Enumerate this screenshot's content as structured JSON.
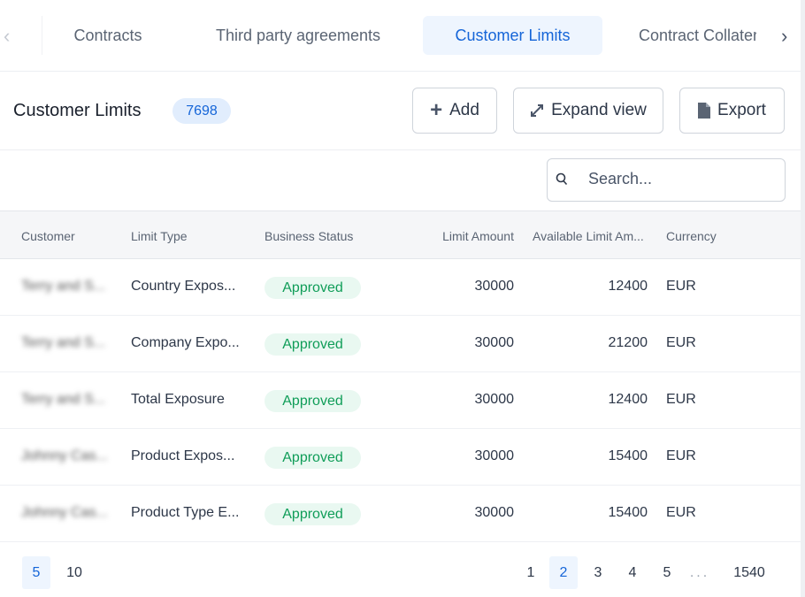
{
  "tabs": [
    {
      "label": "Contracts"
    },
    {
      "label": "Third party agreements"
    },
    {
      "label": "Customer Limits",
      "active": true
    },
    {
      "label": "Contract Collateral"
    }
  ],
  "header": {
    "title": "Customer Limits",
    "count": "7698",
    "add_label": "Add",
    "expand_label": "Expand view",
    "export_label": "Export"
  },
  "search": {
    "placeholder": "Search..."
  },
  "columns": [
    "Customer",
    "Limit Type",
    "Business Status",
    "Limit Amount",
    "Available Limit Am...",
    "Currency"
  ],
  "rows": [
    {
      "customer": "Terry and S...",
      "limit_type": "Country Expos...",
      "status": "Approved",
      "limit_amount": "30000",
      "available": "12400",
      "currency": "EUR"
    },
    {
      "customer": "Terry and S...",
      "limit_type": "Company Expo...",
      "status": "Approved",
      "limit_amount": "30000",
      "available": "21200",
      "currency": "EUR"
    },
    {
      "customer": "Terry and S...",
      "limit_type": "Total Exposure",
      "status": "Approved",
      "limit_amount": "30000",
      "available": "12400",
      "currency": "EUR"
    },
    {
      "customer": "Johnny Cas...",
      "limit_type": "Product Expos...",
      "status": "Approved",
      "limit_amount": "30000",
      "available": "15400",
      "currency": "EUR"
    },
    {
      "customer": "Johnny Cas...",
      "limit_type": "Product Type E...",
      "status": "Approved",
      "limit_amount": "30000",
      "available": "15400",
      "currency": "EUR"
    }
  ],
  "pagination": {
    "page_sizes": [
      "5",
      "10"
    ],
    "selected_size": "5",
    "pages": [
      "1",
      "2",
      "3",
      "4",
      "5"
    ],
    "ellipsis": "...",
    "last": "1540",
    "current": "2"
  },
  "colors": {
    "accent": "#1565d8",
    "approved": "#0f9d58"
  }
}
